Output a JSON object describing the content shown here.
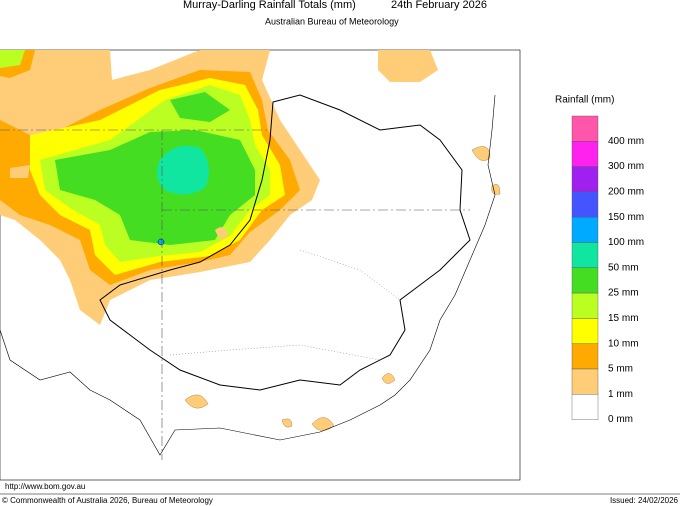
{
  "header": {
    "title": "Murray-Darling Rainfall Totals (mm)",
    "date": "24th February 2026",
    "subtitle": "Australian Bureau of Meteorology"
  },
  "legend": {
    "title": "Rainfall (mm)",
    "items": [
      {
        "label": "400 mm",
        "color": "#ff55aa"
      },
      {
        "label": "300 mm",
        "color": "#ff22ee"
      },
      {
        "label": "200 mm",
        "color": "#a020f0"
      },
      {
        "label": "150 mm",
        "color": "#4455ff"
      },
      {
        "label": "100 mm",
        "color": "#00aaff"
      },
      {
        "label": "50 mm",
        "color": "#11e6a0"
      },
      {
        "label": "25 mm",
        "color": "#44dd22"
      },
      {
        "label": "15 mm",
        "color": "#bbff22"
      },
      {
        "label": "10 mm",
        "color": "#ffff00"
      },
      {
        "label": "5 mm",
        "color": "#ffaa00"
      },
      {
        "label": "1 mm",
        "color": "#ffcc77"
      },
      {
        "label": "0 mm",
        "color": "#ffffff"
      }
    ]
  },
  "footer": {
    "url": "http://www.bom.gov.au",
    "copyright": "© Commonwealth of Australia 2026, Bureau of Meteorology",
    "issued": "Issued: 24/02/2026"
  }
}
